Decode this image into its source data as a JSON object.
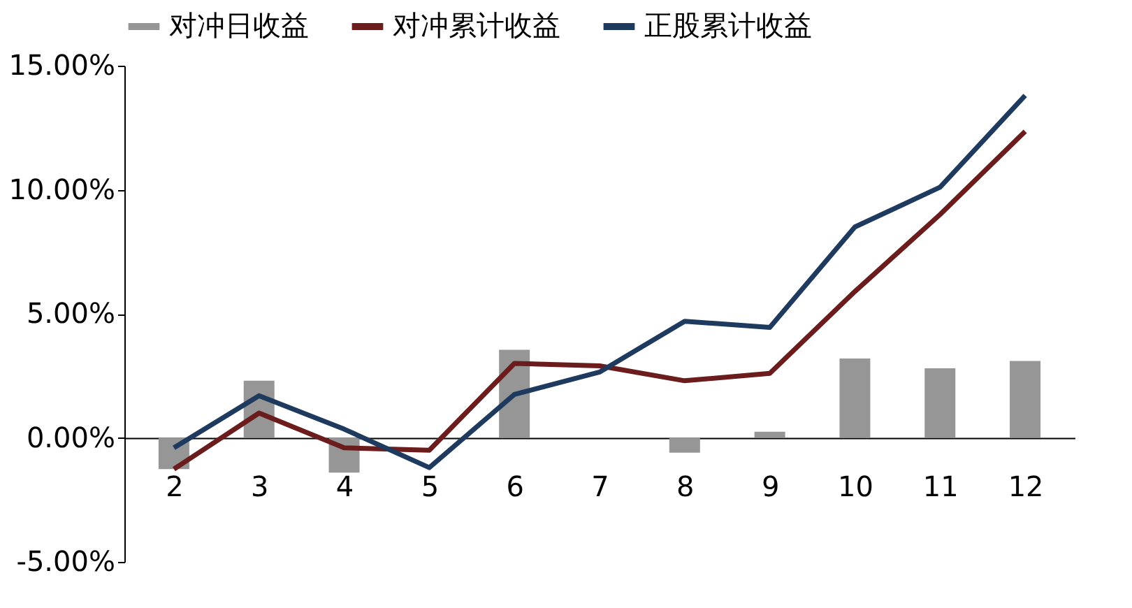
{
  "chart_data": {
    "type": "bar",
    "categories": [
      "2",
      "3",
      "4",
      "5",
      "6",
      "7",
      "8",
      "9",
      "10",
      "11",
      "12"
    ],
    "series": [
      {
        "name": "对冲日收益",
        "color": "#969696",
        "values": [
          -1.26,
          2.3,
          -1.4,
          0,
          3.55,
          0,
          -0.6,
          0.25,
          3.2,
          2.8,
          3.1
        ]
      },
      {
        "name": "对冲累计收益",
        "type": "line",
        "color": "#6b1c1c",
        "values": [
          -1.26,
          1.0,
          -0.4,
          -0.5,
          3.0,
          2.9,
          2.3,
          2.6,
          5.9,
          9.0,
          12.35
        ]
      },
      {
        "name": "正股累计收益",
        "type": "line",
        "color": "#1e3a5f",
        "values": [
          -0.4,
          1.7,
          0.35,
          -1.2,
          1.75,
          2.65,
          4.7,
          4.45,
          8.5,
          10.1,
          13.8
        ]
      }
    ],
    "ylim": [
      -5,
      15
    ],
    "yticks": [
      {
        "value": -5,
        "label": "-5.00%"
      },
      {
        "value": 0,
        "label": "0.00%"
      },
      {
        "value": 5,
        "label": "5.00%"
      },
      {
        "value": 10,
        "label": "10.00%"
      },
      {
        "value": 15,
        "label": "15.00%"
      }
    ],
    "grid": false,
    "legend": "top"
  }
}
